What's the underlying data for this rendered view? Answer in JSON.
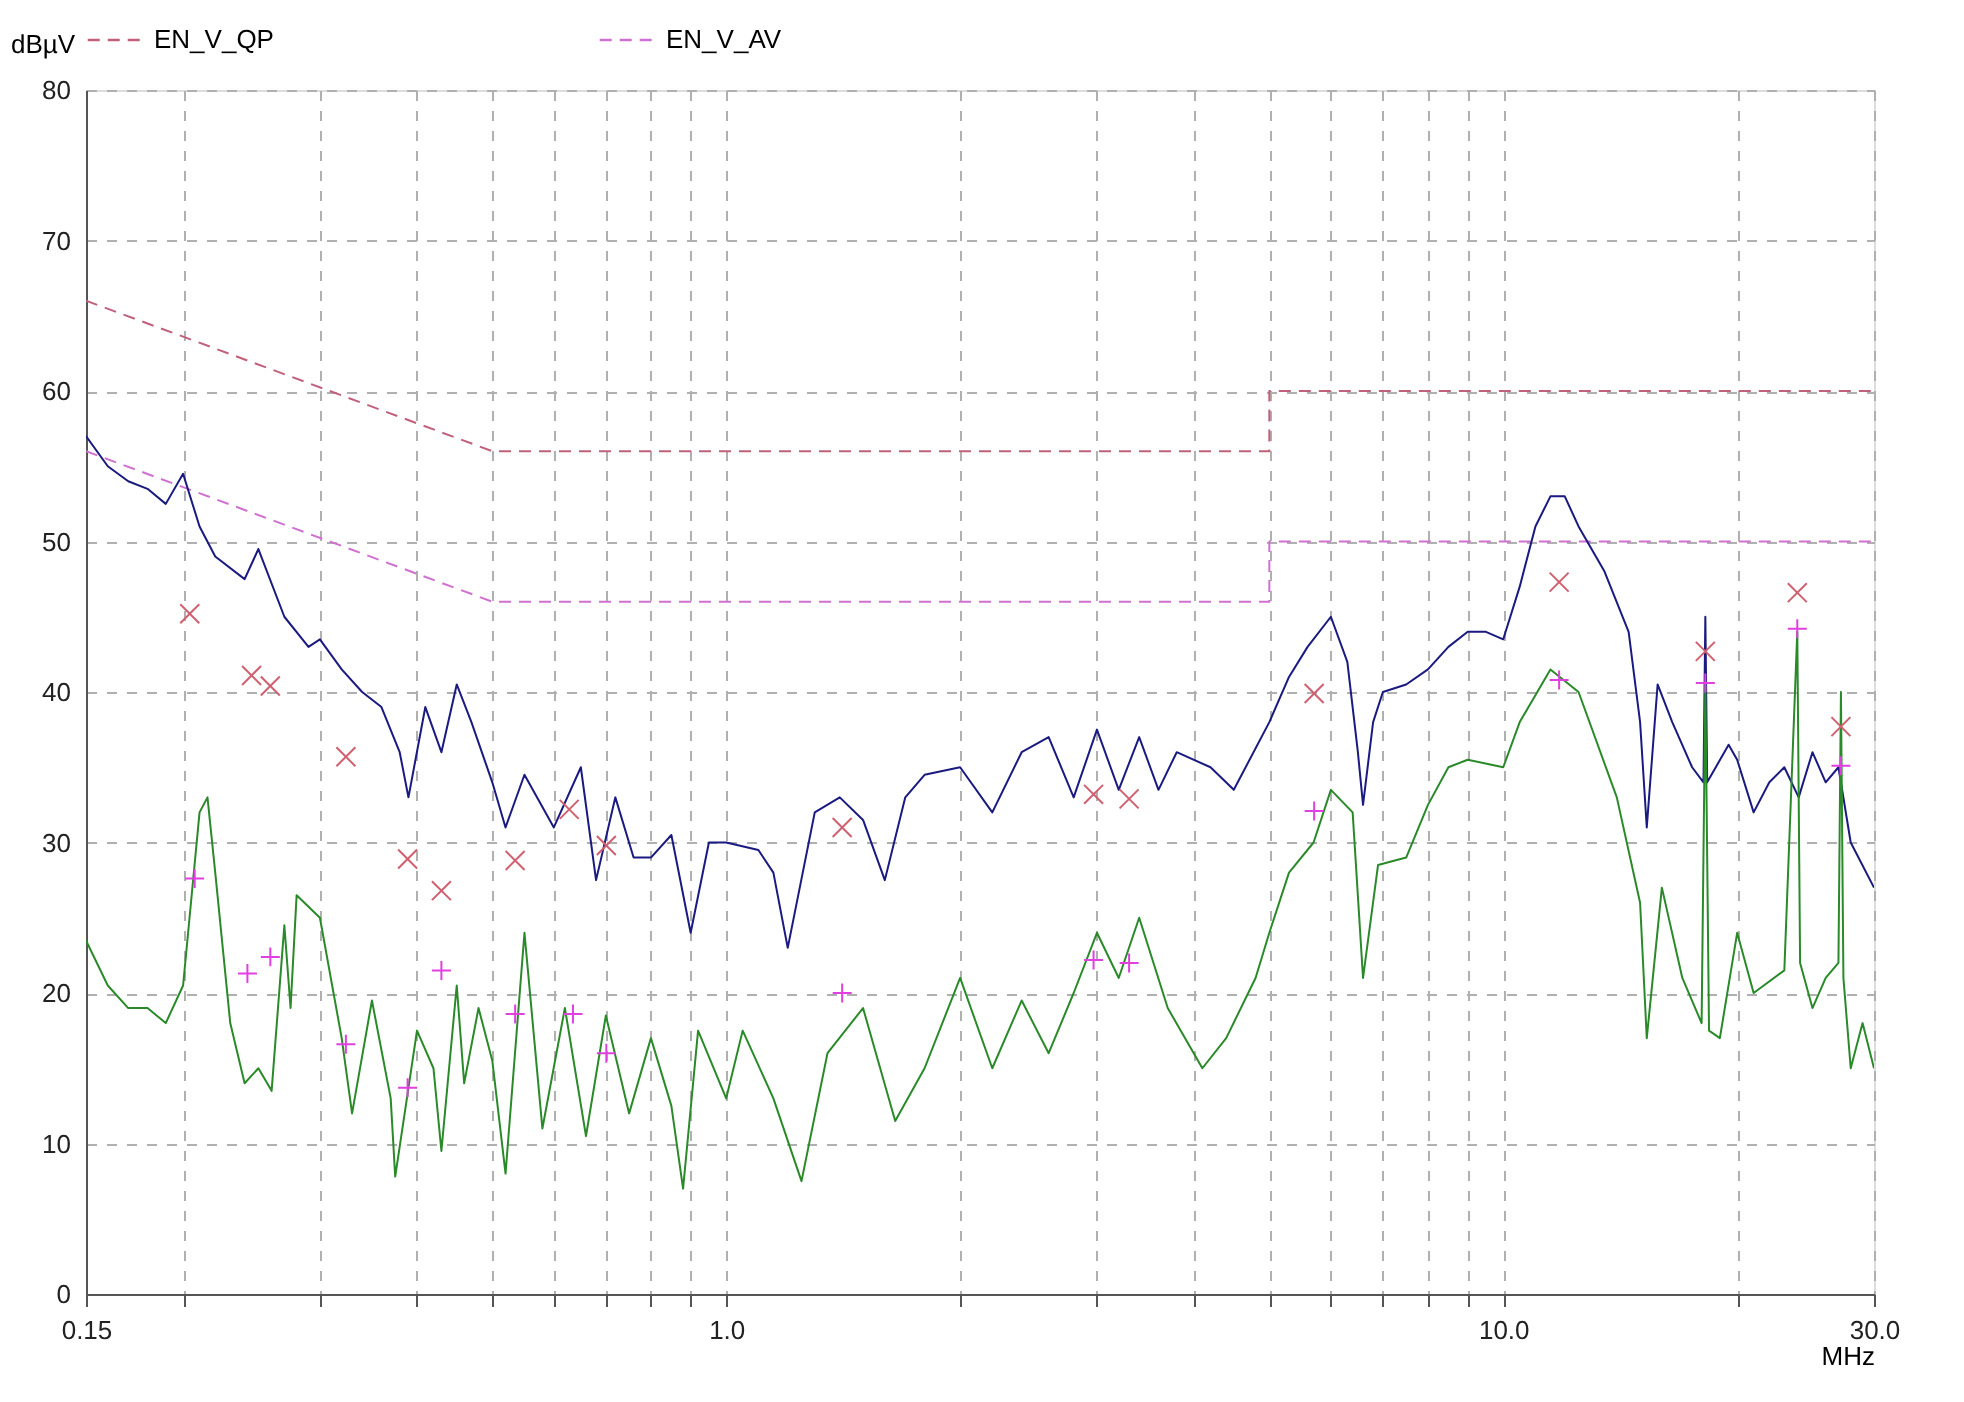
{
  "chart_data": {
    "type": "line",
    "xlabel": "MHz",
    "ylabel": "dBµV",
    "log": "x",
    "grid": true,
    "legend": "top",
    "xlim": [
      0.15,
      30
    ],
    "ylim": [
      0,
      80
    ],
    "xticks": [
      {
        "value": 0.15,
        "label": "0.15"
      },
      {
        "value": 0.2,
        "label": null
      },
      {
        "value": 0.3,
        "label": null
      },
      {
        "value": 0.4,
        "label": null
      },
      {
        "value": 0.5,
        "label": null
      },
      {
        "value": 0.6,
        "label": null
      },
      {
        "value": 0.7,
        "label": null
      },
      {
        "value": 0.8,
        "label": null
      },
      {
        "value": 0.9,
        "label": null
      },
      {
        "value": 1,
        "label": "1.0"
      },
      {
        "value": 2,
        "label": null
      },
      {
        "value": 3,
        "label": null
      },
      {
        "value": 4,
        "label": null
      },
      {
        "value": 5,
        "label": null
      },
      {
        "value": 6,
        "label": null
      },
      {
        "value": 7,
        "label": null
      },
      {
        "value": 8,
        "label": null
      },
      {
        "value": 9,
        "label": null
      },
      {
        "value": 10,
        "label": "10.0"
      },
      {
        "value": 20,
        "label": null
      },
      {
        "value": 30,
        "label": "30.0"
      }
    ],
    "yticks": [
      0,
      10,
      20,
      30,
      40,
      50,
      60,
      70,
      80
    ],
    "series": [
      {
        "name": "EN_V_QP",
        "line_style": "dashed",
        "color": "#c0607a",
        "x": [
          0.15,
          0.5,
          5,
          5,
          30
        ],
        "values": [
          66,
          56,
          56,
          60,
          60
        ]
      },
      {
        "name": "EN_V_AV",
        "line_style": "dashed",
        "color": "#d070d0",
        "x": [
          0.15,
          0.5,
          5,
          5,
          30
        ],
        "values": [
          56,
          46,
          46,
          50,
          50
        ]
      },
      {
        "line_style": "solid",
        "color": "#1a1a80",
        "x": [
          0.15,
          0.16,
          0.17,
          0.18,
          0.19,
          0.2,
          0.21,
          0.22,
          0.24,
          0.25,
          0.27,
          0.29,
          0.3,
          0.32,
          0.34,
          0.36,
          0.38,
          0.39,
          0.41,
          0.43,
          0.45,
          0.47,
          0.5,
          0.52,
          0.55,
          0.6,
          0.65,
          0.68,
          0.72,
          0.76,
          0.8,
          0.85,
          0.9,
          0.95,
          1.0,
          1.1,
          1.15,
          1.2,
          1.3,
          1.4,
          1.5,
          1.6,
          1.7,
          1.8,
          2.0,
          2.2,
          2.4,
          2.6,
          2.8,
          3.0,
          3.2,
          3.4,
          3.6,
          3.8,
          4.2,
          4.5,
          5.0,
          5.3,
          5.6,
          6.0,
          6.3,
          6.5,
          6.6,
          6.8,
          7.0,
          7.5,
          8.0,
          8.5,
          9.0,
          9.5,
          10,
          10.5,
          11,
          11.5,
          12,
          12.5,
          13.5,
          14.5,
          15,
          15.3,
          15.8,
          16.5,
          17.5,
          18.1,
          18.2,
          18.3,
          19.5,
          20,
          21,
          22,
          23,
          24,
          25,
          26,
          27,
          28,
          30
        ],
        "values": [
          57,
          55,
          54,
          53.5,
          52.5,
          54.5,
          51,
          49,
          47.5,
          49.5,
          45,
          43,
          43.5,
          41.5,
          40,
          39,
          36,
          33,
          39,
          36,
          40.5,
          38,
          34,
          31,
          34.5,
          31,
          35,
          27.5,
          33,
          29,
          29,
          30.5,
          24,
          30,
          30,
          29.5,
          28,
          23,
          32,
          33,
          31.5,
          27.5,
          33,
          34.5,
          35,
          32,
          36,
          37,
          33,
          37.5,
          33.5,
          37,
          33.5,
          36,
          35,
          33.5,
          38,
          41,
          43,
          45,
          42,
          36,
          32.5,
          38,
          40,
          40.5,
          41.5,
          43,
          44,
          44,
          43.5,
          47,
          51,
          53,
          53,
          51,
          48,
          44,
          38,
          31,
          40.5,
          38,
          35,
          34,
          45,
          34,
          36.5,
          35.5,
          32,
          34,
          35,
          33,
          36,
          34,
          35,
          30,
          27
        ]
      },
      {
        "line_style": "solid",
        "color": "#2a8a2a",
        "x": [
          0.15,
          0.16,
          0.17,
          0.18,
          0.19,
          0.2,
          0.21,
          0.215,
          0.22,
          0.23,
          0.24,
          0.25,
          0.26,
          0.27,
          0.275,
          0.28,
          0.3,
          0.32,
          0.33,
          0.35,
          0.37,
          0.375,
          0.4,
          0.42,
          0.43,
          0.45,
          0.46,
          0.48,
          0.5,
          0.52,
          0.55,
          0.58,
          0.62,
          0.66,
          0.7,
          0.75,
          0.8,
          0.85,
          0.88,
          0.92,
          1.0,
          1.05,
          1.15,
          1.25,
          1.35,
          1.5,
          1.65,
          1.8,
          2.0,
          2.2,
          2.4,
          2.6,
          2.8,
          3.0,
          3.2,
          3.4,
          3.7,
          4.1,
          4.4,
          4.8,
          5.0,
          5.3,
          5.7,
          6.0,
          6.4,
          6.6,
          6.9,
          7.5,
          8.0,
          8.5,
          9.0,
          10,
          10.5,
          11.5,
          12.5,
          14,
          15,
          15.3,
          16,
          17,
          18,
          18.2,
          18.4,
          19,
          20,
          21,
          23,
          23.9,
          24.1,
          25,
          26,
          27,
          27.2,
          27.4,
          28,
          29,
          30
        ],
        "values": [
          23.5,
          20.5,
          19,
          19,
          18,
          20.5,
          32,
          33,
          28,
          18,
          14,
          15,
          13.5,
          24.5,
          19,
          26.5,
          25,
          17,
          12,
          19.5,
          13,
          7.8,
          17.5,
          15,
          9.5,
          20.5,
          14,
          19,
          15.5,
          8,
          24,
          11,
          19,
          10.5,
          18.5,
          12,
          17,
          12.5,
          7,
          17.5,
          13,
          17.5,
          13,
          7.5,
          16,
          19,
          11.5,
          15,
          21,
          15,
          19.5,
          16,
          20,
          24,
          21,
          25,
          19,
          15,
          17,
          21,
          24,
          28,
          30,
          33.5,
          32,
          21,
          28.5,
          29,
          32.5,
          35,
          35.5,
          35,
          38,
          41.5,
          40,
          33,
          26,
          17,
          27,
          21,
          18,
          40.5,
          17.5,
          17,
          24,
          20,
          21.5,
          44,
          22,
          19,
          21,
          22,
          40,
          21,
          15,
          18,
          15
        ]
      },
      {
        "type": "scatter",
        "marker": "x",
        "color": "#d06070",
        "x": [
          0.204,
          0.245,
          0.259,
          0.324,
          0.389,
          0.43,
          0.535,
          0.628,
          0.701,
          1.41,
          2.97,
          3.3,
          5.71,
          11.8,
          18.2,
          23.9,
          27.2
        ],
        "values": [
          45.2,
          41.1,
          40.4,
          35.7,
          28.9,
          26.8,
          28.8,
          32.2,
          29.8,
          31,
          33.2,
          32.9,
          39.9,
          47.3,
          42.7,
          46.6,
          37.7
        ]
      },
      {
        "type": "scatter",
        "marker": "cross",
        "color": "#e040e0",
        "x": [
          0.207,
          0.242,
          0.259,
          0.324,
          0.389,
          0.43,
          0.535,
          0.635,
          0.701,
          1.41,
          2.97,
          3.3,
          5.71,
          11.8,
          18.2,
          23.9,
          27.2
        ],
        "values": [
          27.6,
          21.3,
          22.4,
          16.6,
          13.7,
          21.5,
          18.6,
          18.6,
          16,
          20,
          22.2,
          22,
          32.1,
          40.8,
          40.6,
          44.2,
          35.1
        ]
      }
    ]
  }
}
